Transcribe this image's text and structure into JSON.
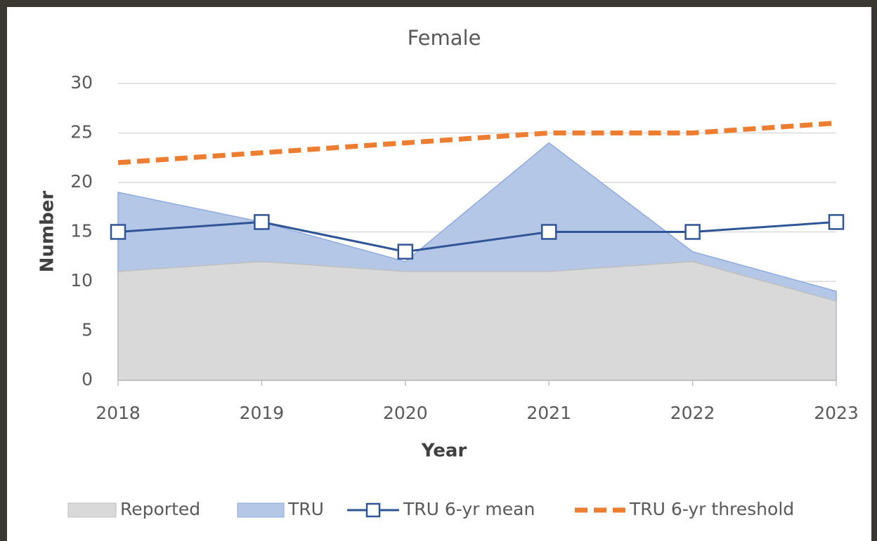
{
  "chart_data": {
    "type": "area-line",
    "title": "Female",
    "x_label": "Year",
    "y_label": "Number",
    "categories": [
      "2018",
      "2019",
      "2020",
      "2021",
      "2022",
      "2023"
    ],
    "series": [
      {
        "name": "Reported",
        "kind": "area",
        "color": "#d9d9d9",
        "values": [
          11,
          12,
          11,
          11,
          12,
          8
        ]
      },
      {
        "name": "TRU",
        "kind": "area",
        "color": "#b4c7e7",
        "values": [
          19,
          16,
          12,
          24,
          13,
          9
        ]
      },
      {
        "name": "TRU 6-yr mean",
        "kind": "line",
        "color": "#2f5597",
        "values": [
          15,
          16,
          13,
          15,
          15,
          16
        ]
      },
      {
        "name": "TRU 6-yr threshold",
        "kind": "dashed",
        "color": "#ed7d31",
        "values": [
          22,
          23,
          24,
          25,
          25,
          26
        ]
      }
    ],
    "ylim": [
      0,
      30
    ],
    "yticks": [
      0,
      5,
      10,
      15,
      20,
      25,
      30
    ],
    "grid": true,
    "legend": "bottom"
  }
}
